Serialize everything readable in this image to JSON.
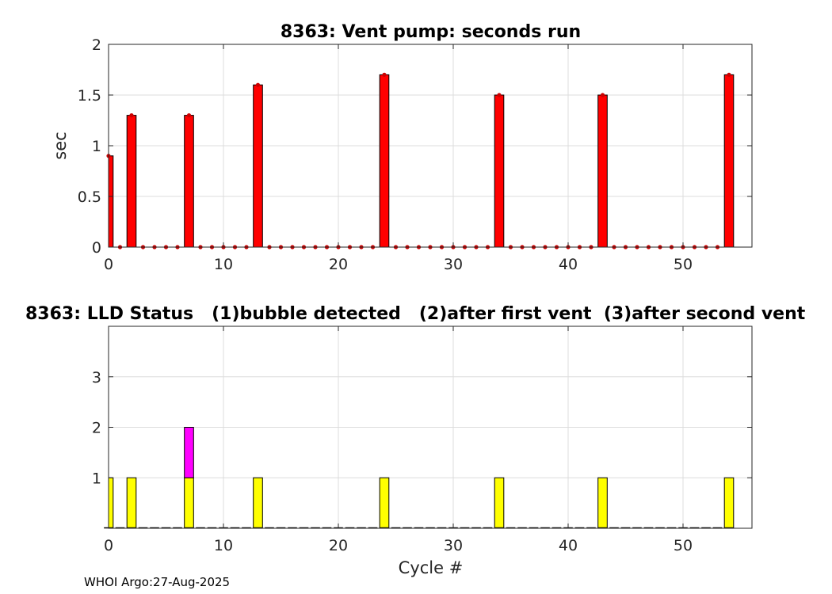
{
  "footer": "WHOI Argo:27-Aug-2025",
  "chart_data": [
    {
      "type": "bar",
      "title": "8363: Vent pump: seconds run",
      "xlabel": "",
      "ylabel": "sec",
      "xlim": [
        0,
        56
      ],
      "ylim": [
        0,
        2
      ],
      "xticks": [
        0,
        10,
        20,
        30,
        40,
        50
      ],
      "yticks": [
        0,
        0.5,
        1,
        1.5,
        2
      ],
      "ytick_labels": [
        "0",
        "0.5",
        "1",
        "1.5",
        "2"
      ],
      "grid": true,
      "bar_color": "#ff0000",
      "marker_color": "#cc0000",
      "x": [
        0,
        1,
        2,
        3,
        4,
        5,
        6,
        7,
        8,
        9,
        10,
        11,
        12,
        13,
        14,
        15,
        16,
        17,
        18,
        19,
        20,
        21,
        22,
        23,
        24,
        25,
        26,
        27,
        28,
        29,
        30,
        31,
        32,
        33,
        34,
        35,
        36,
        37,
        38,
        39,
        40,
        41,
        42,
        43,
        44,
        45,
        46,
        47,
        48,
        49,
        50,
        51,
        52,
        53,
        54
      ],
      "values": [
        0.9,
        0,
        1.3,
        0,
        0,
        0,
        0,
        1.3,
        0,
        0,
        0,
        0,
        0,
        1.6,
        0,
        0,
        0,
        0,
        0,
        0,
        0,
        0,
        0,
        0,
        1.7,
        0,
        0,
        0,
        0,
        0,
        0,
        0,
        0,
        0,
        1.5,
        0,
        0,
        0,
        0,
        0,
        0,
        0,
        0,
        1.5,
        0,
        0,
        0,
        0,
        0,
        0,
        0,
        0,
        0,
        0,
        1.7
      ]
    },
    {
      "type": "bar",
      "stacked": true,
      "title": "8363: LLD Status   (1)bubble detected   (2)after first vent  (3)after second vent",
      "xlabel": "Cycle #",
      "ylabel": "",
      "xlim": [
        0,
        56
      ],
      "ylim": [
        0,
        4
      ],
      "xticks": [
        0,
        10,
        20,
        30,
        40,
        50
      ],
      "yticks": [
        1,
        2,
        3
      ],
      "ytick_labels": [
        "1",
        "2",
        "3"
      ],
      "grid": true,
      "categories": [
        0,
        2,
        7,
        13,
        24,
        34,
        43,
        54
      ],
      "series": [
        {
          "color": "#ffff00",
          "values": [
            1,
            1,
            1,
            1,
            1,
            1,
            1,
            1
          ]
        },
        {
          "color": "#ff00ff",
          "values": [
            0,
            0,
            1,
            0,
            0,
            0,
            0,
            0
          ]
        }
      ],
      "baseline_x": [
        0,
        1,
        2,
        3,
        4,
        5,
        6,
        7,
        8,
        9,
        10,
        11,
        12,
        13,
        14,
        15,
        16,
        17,
        18,
        19,
        20,
        21,
        22,
        23,
        24,
        25,
        26,
        27,
        28,
        29,
        30,
        31,
        32,
        33,
        34,
        35,
        36,
        37,
        38,
        39,
        40,
        41,
        42,
        43,
        44,
        45,
        46,
        47,
        48,
        49,
        50,
        51,
        52,
        53,
        54
      ]
    }
  ]
}
